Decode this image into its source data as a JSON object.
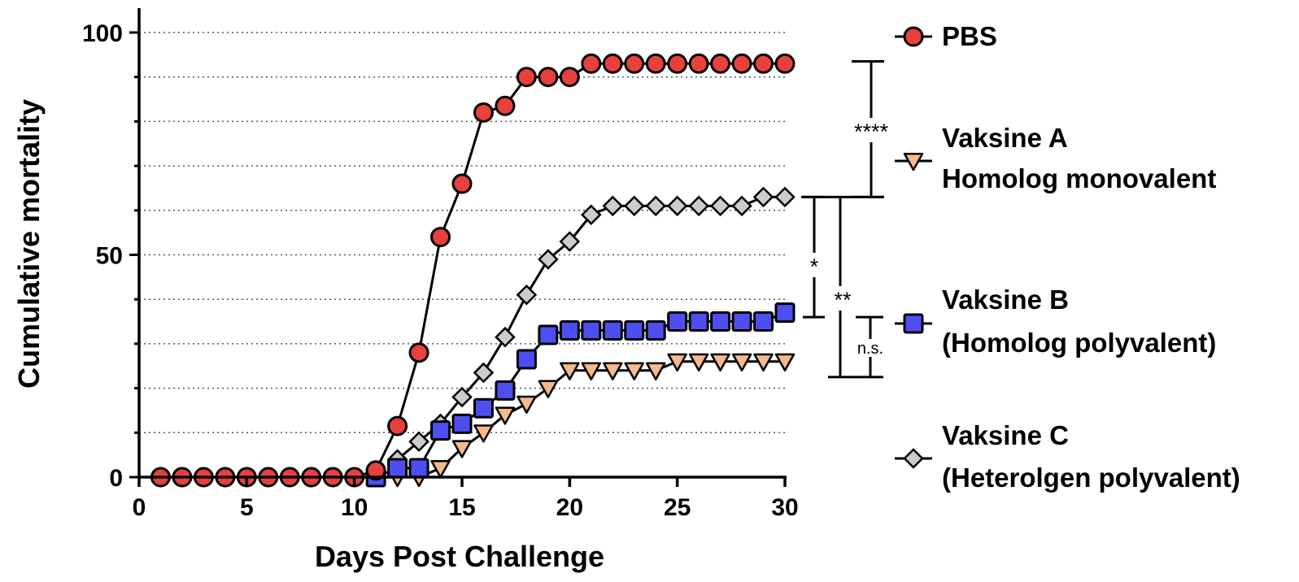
{
  "chart_data": {
    "type": "line",
    "title": "",
    "xlabel": "Days Post Challenge",
    "ylabel": "Cumulative mortality",
    "xlim": [
      0,
      30
    ],
    "ylim": [
      0,
      100
    ],
    "xticks": [
      0,
      5,
      10,
      15,
      20,
      25,
      30
    ],
    "yticks": [
      0,
      50,
      100
    ],
    "xtick_labels": [
      "0",
      "5",
      "10",
      "15",
      "20",
      "25",
      "30"
    ],
    "ytick_labels": [
      "0",
      "50",
      "100"
    ],
    "grid": "dotted horizontal every 10",
    "legend_position": "right",
    "series": [
      {
        "name": "PBS",
        "marker": "circle",
        "color": "#e8403c",
        "x": [
          1,
          2,
          3,
          4,
          5,
          6,
          7,
          8,
          9,
          10,
          11,
          12,
          13,
          14,
          15,
          16,
          17,
          18,
          19,
          20,
          21,
          22,
          23,
          24,
          25,
          26,
          27,
          28,
          29,
          30
        ],
        "values": [
          0,
          0,
          0,
          0,
          0,
          0,
          0,
          0,
          0,
          0,
          1.5,
          11.5,
          28,
          54,
          66,
          82,
          83.5,
          90,
          90,
          90,
          93,
          93,
          93,
          93,
          93,
          93,
          93,
          93,
          93,
          93
        ]
      },
      {
        "name": "Vaksine A\nHomolog monovalent",
        "legend_lines": [
          "Vaksine A",
          "Homolog monovalent"
        ],
        "marker": "triangle-down",
        "color": "#f5b98b",
        "x": [
          11,
          12,
          13,
          14,
          15,
          16,
          17,
          18,
          19,
          20,
          21,
          22,
          23,
          24,
          25,
          26,
          27,
          28,
          29,
          30
        ],
        "values": [
          0,
          0,
          0,
          2,
          6.5,
          10,
          14,
          16.5,
          20,
          24,
          24,
          24,
          24,
          24,
          26,
          26,
          26,
          26,
          26,
          26
        ]
      },
      {
        "name": "Vaksine B\n(Homolog polyvalent)",
        "legend_lines": [
          "Vaksine B",
          "(Homolog polyvalent)"
        ],
        "marker": "square",
        "color": "#4e4ef0",
        "x": [
          11,
          12,
          13,
          14,
          15,
          16,
          17,
          18,
          19,
          20,
          21,
          22,
          23,
          24,
          25,
          26,
          27,
          28,
          29,
          30
        ],
        "values": [
          0,
          2,
          2,
          10.5,
          12,
          15.5,
          19.5,
          26.5,
          32,
          33,
          33,
          33,
          33,
          33,
          35,
          35,
          35,
          35,
          35,
          37
        ]
      },
      {
        "name": "Vaksine C\n(Heterolgen polyvalent)",
        "legend_lines": [
          "Vaksine C",
          "(Heterolgen polyvalent)"
        ],
        "marker": "diamond",
        "color": "#cccccc",
        "x": [
          12,
          13,
          14,
          15,
          16,
          17,
          18,
          19,
          20,
          21,
          22,
          23,
          24,
          25,
          26,
          27,
          28,
          29,
          30
        ],
        "values": [
          4,
          8,
          12,
          18,
          23.5,
          31.5,
          41,
          49,
          53,
          59,
          61,
          61,
          61,
          61,
          61,
          61,
          61,
          63,
          63
        ]
      }
    ],
    "annotations": [
      {
        "label": "****",
        "from": 93.5,
        "to": 63
      },
      {
        "label": "*",
        "from": 63,
        "to": 36
      },
      {
        "label": "**",
        "from": 63,
        "to": 22.5
      },
      {
        "label": "n.s.",
        "from": 36,
        "to": 22.5
      }
    ]
  },
  "colors": {
    "axis": "#000000",
    "grid": "#555555",
    "stroke": "#000000"
  }
}
